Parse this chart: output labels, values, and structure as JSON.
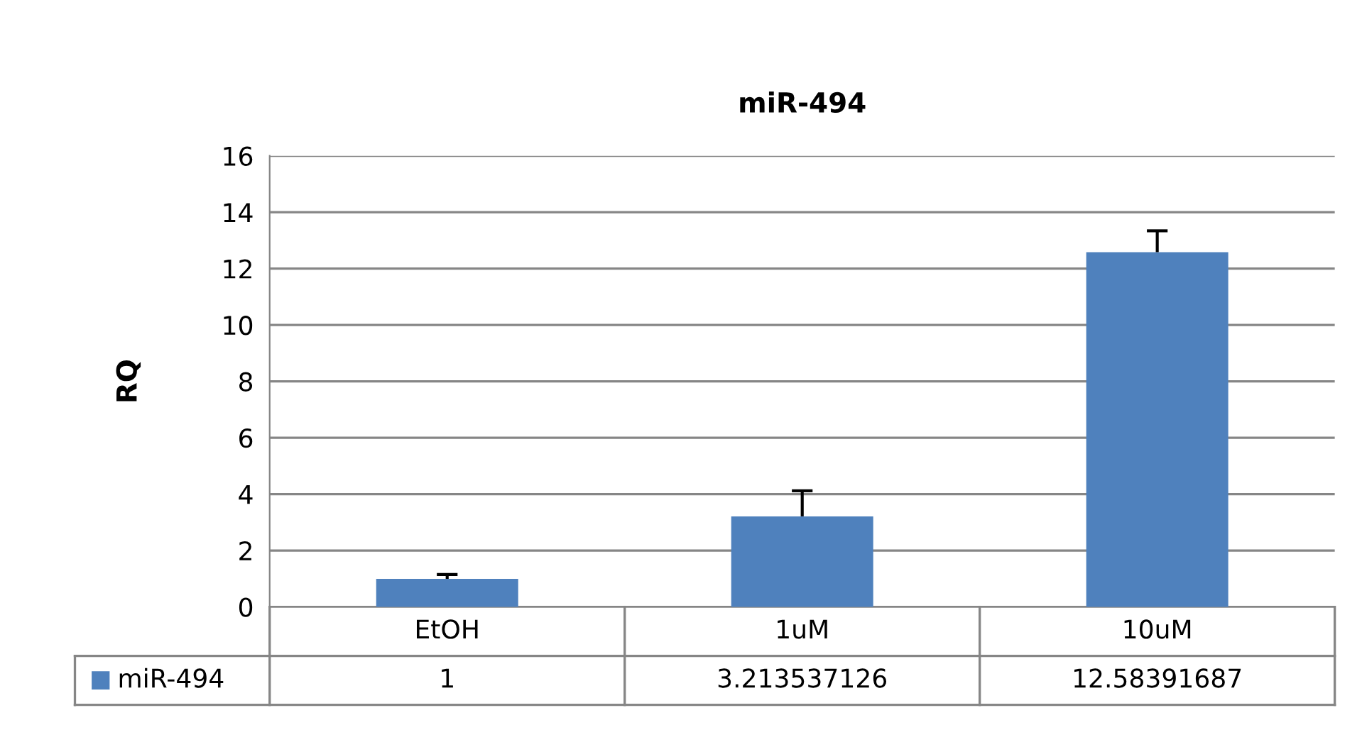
{
  "chart_data": {
    "type": "bar",
    "title": "miR-494",
    "ylabel": "RQ",
    "categories": [
      "EtOH",
      "1uM",
      "10uM"
    ],
    "series": [
      {
        "name": "miR-494",
        "color": "#4f81bd",
        "values": [
          1,
          3.213537126,
          12.58391687
        ],
        "errors": [
          [
            1,
            1.15
          ],
          [
            3.213537126,
            4.12
          ],
          [
            12.58391687,
            13.34
          ]
        ]
      }
    ],
    "ylim": [
      0,
      16
    ],
    "yticks": [
      0,
      2,
      4,
      6,
      8,
      10,
      12,
      14,
      16
    ],
    "grid": "y",
    "legend": "bottom",
    "data_labels": true
  }
}
